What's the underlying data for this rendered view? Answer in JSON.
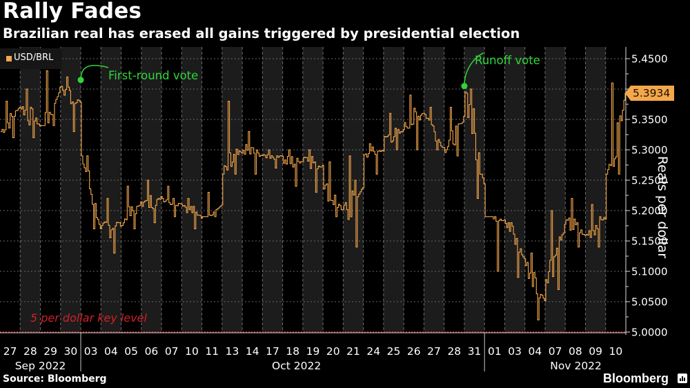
{
  "header": {
    "title": "Rally Fades",
    "subtitle": "Brazilian real has erased all gains triggered by presidential election"
  },
  "footer": {
    "source": "Source: Bloomberg",
    "brand": "Bloomberg"
  },
  "colors": {
    "series": "#f5a74b",
    "annotation": "#2fd63a",
    "key_level": "#d0202a",
    "band": "#1c1c1c",
    "background": "#000000"
  },
  "chart_data": {
    "type": "line",
    "title": "Rally Fades",
    "subtitle": "Brazilian real has erased all gains triggered by presidential election",
    "xlabel": "",
    "ylabel": "Reais per dollar",
    "ylim": [
      5.0,
      5.47
    ],
    "yticks": [
      "5.0000",
      "5.0500",
      "5.1000",
      "5.1500",
      "5.2000",
      "5.2500",
      "5.3000",
      "5.3500",
      "5.4000",
      "5.4500"
    ],
    "ytick_values": [
      5.0,
      5.05,
      5.1,
      5.15,
      5.2,
      5.25,
      5.3,
      5.35,
      5.4,
      5.45
    ],
    "ytick_labels_shown": [
      "5.0000",
      "5.0500",
      "5.1000",
      "5.1500",
      "5.2000",
      "5.2500",
      "5.3000",
      "5.3500",
      "5.4500"
    ],
    "grid": true,
    "legend": {
      "position": "top-left",
      "entries": [
        {
          "name": "USD/BRL",
          "color": "#f5a74b"
        }
      ]
    },
    "last_value": "5.3934",
    "categories": [
      "27",
      "28",
      "29",
      "30",
      "03",
      "04",
      "05",
      "06",
      "07",
      "10",
      "11",
      "13",
      "14",
      "17",
      "18",
      "19",
      "20",
      "21",
      "24",
      "25",
      "26",
      "27",
      "28",
      "31",
      "01",
      "03",
      "04",
      "07",
      "08",
      "09",
      "10"
    ],
    "month_groups": [
      {
        "label": "Sep 2022",
        "start": 0,
        "end": 3
      },
      {
        "label": "Oct 2022",
        "start": 4,
        "end": 23
      },
      {
        "label": "Nov 2022",
        "start": 24,
        "end": 30
      }
    ],
    "series": [
      {
        "name": "USD/BRL",
        "day_open": [
          5.33,
          5.37,
          5.33,
          5.4,
          5.29,
          5.17,
          5.18,
          5.21,
          5.22,
          5.21,
          5.18,
          5.26,
          5.3,
          5.29,
          5.28,
          5.29,
          5.24,
          5.2,
          5.29,
          5.32,
          5.34,
          5.36,
          5.3,
          5.4,
          5.22,
          5.18,
          5.11,
          5.09,
          5.18,
          5.16,
          5.25
        ],
        "day_high": [
          5.38,
          5.4,
          5.43,
          5.42,
          5.29,
          5.22,
          5.24,
          5.25,
          5.24,
          5.22,
          5.23,
          5.38,
          5.33,
          5.3,
          5.3,
          5.3,
          5.28,
          5.29,
          5.31,
          5.36,
          5.39,
          5.37,
          5.37,
          5.4,
          5.19,
          5.18,
          5.13,
          5.2,
          5.22,
          5.21,
          5.41
        ],
        "day_low": [
          5.32,
          5.32,
          5.34,
          5.33,
          5.17,
          5.13,
          5.17,
          5.18,
          5.19,
          5.17,
          5.19,
          5.26,
          5.26,
          5.27,
          5.24,
          5.23,
          5.19,
          5.14,
          5.26,
          5.3,
          5.3,
          5.3,
          5.29,
          5.22,
          5.1,
          5.09,
          5.02,
          5.07,
          5.14,
          5.14,
          5.26
        ],
        "day_close": [
          5.37,
          5.34,
          5.4,
          5.38,
          5.17,
          5.18,
          5.21,
          5.22,
          5.21,
          5.19,
          5.21,
          5.3,
          5.29,
          5.29,
          5.28,
          5.27,
          5.2,
          5.24,
          5.3,
          5.33,
          5.36,
          5.3,
          5.35,
          5.24,
          5.18,
          5.12,
          5.05,
          5.17,
          5.16,
          5.19,
          5.39
        ]
      }
    ],
    "annotations": [
      {
        "label": "First-round vote",
        "day_index": 3,
        "value": 5.415,
        "at": "end"
      },
      {
        "label": "Runoff vote",
        "day_index": 23,
        "value": 5.405,
        "at": "start"
      },
      {
        "label": "5 per dollar key level",
        "value": 5.0,
        "type": "hline"
      }
    ]
  }
}
